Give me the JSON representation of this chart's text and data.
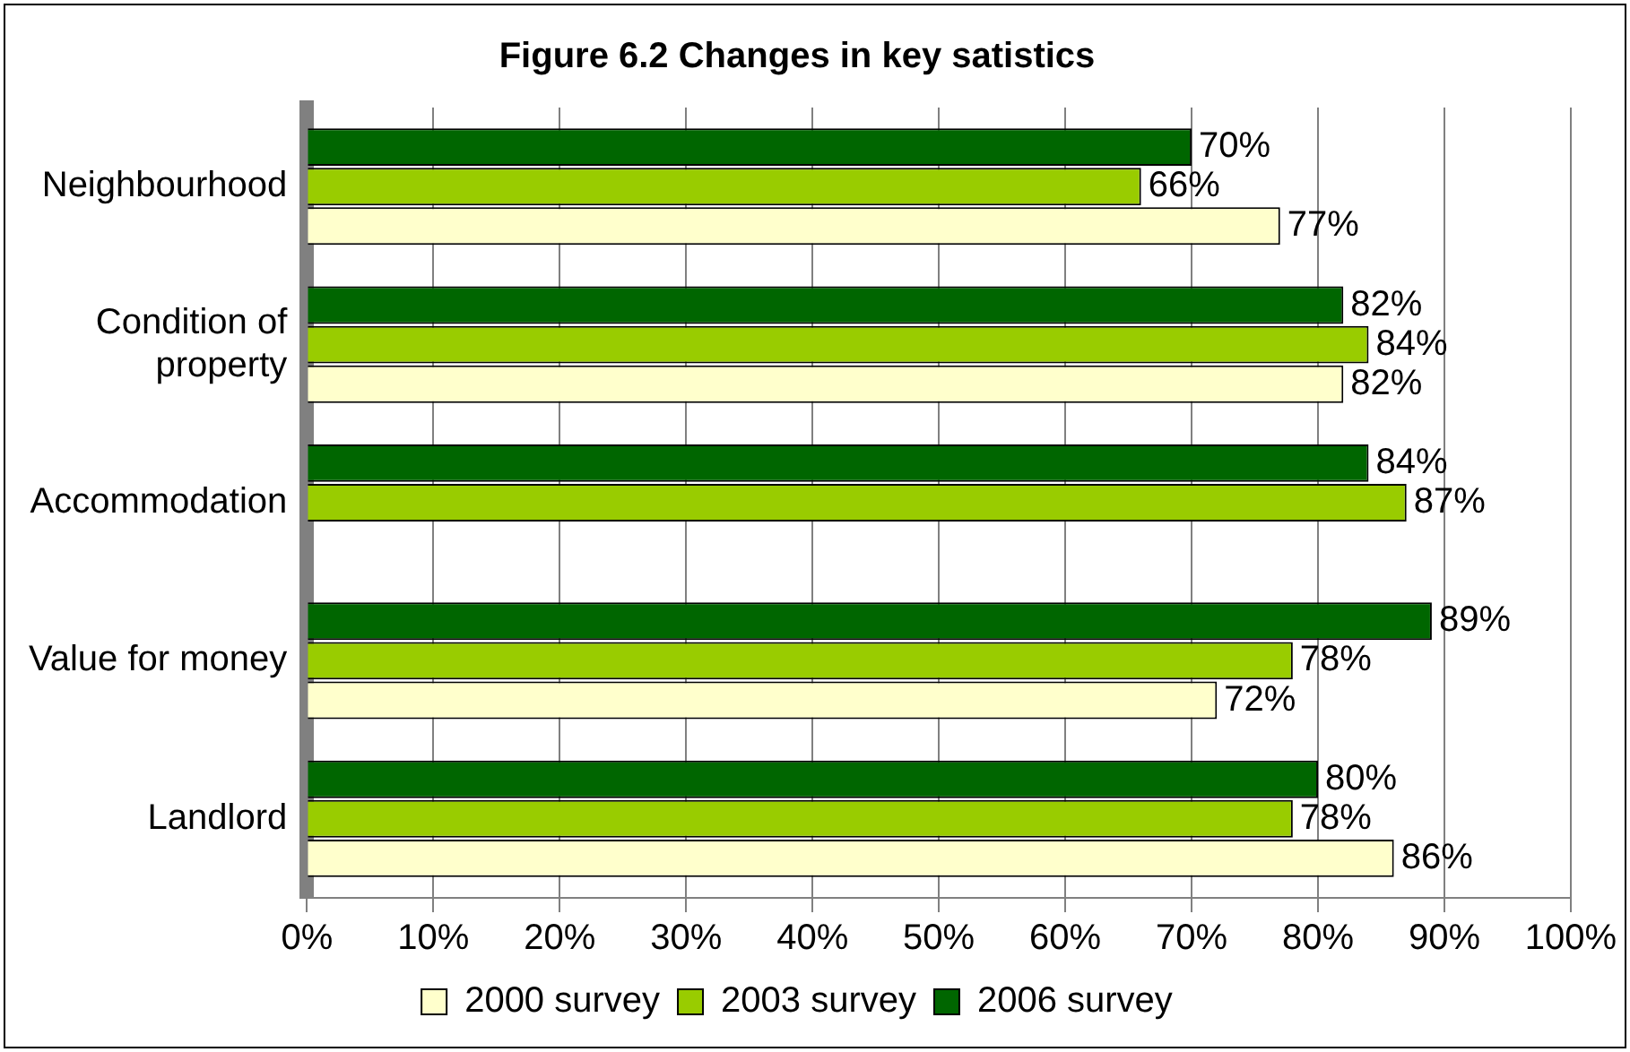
{
  "chart_data": {
    "type": "bar",
    "orientation": "horizontal",
    "title": "Figure 6.2 Changes in key satistics",
    "categories": [
      "Neighbourhood",
      "Condition of property",
      "Accommodation",
      "Value for money",
      "Landlord"
    ],
    "series": [
      {
        "name": "2000 survey",
        "color": "#ffffcc",
        "values": [
          77,
          82,
          null,
          72,
          86
        ],
        "value_labels": [
          "77%",
          "82%",
          null,
          "72%",
          "86%"
        ]
      },
      {
        "name": "2003 survey",
        "color": "#99cc00",
        "values": [
          66,
          84,
          87,
          78,
          78
        ],
        "value_labels": [
          "66%",
          "84%",
          "87%",
          "78%",
          "78%"
        ]
      },
      {
        "name": "2006 survey",
        "color": "#006600",
        "values": [
          70,
          82,
          84,
          89,
          80
        ],
        "value_labels": [
          "70%",
          "82%",
          "84%",
          "89%",
          "80%"
        ]
      }
    ],
    "xlim": [
      0,
      100
    ],
    "xticks": [
      {
        "value": 0,
        "label": "0%"
      },
      {
        "value": 10,
        "label": "10%"
      },
      {
        "value": 20,
        "label": "20%"
      },
      {
        "value": 30,
        "label": "30%"
      },
      {
        "value": 40,
        "label": "40%"
      },
      {
        "value": 50,
        "label": "50%"
      },
      {
        "value": 60,
        "label": "60%"
      },
      {
        "value": 70,
        "label": "70%"
      },
      {
        "value": 80,
        "label": "80%"
      },
      {
        "value": 90,
        "label": "90%"
      },
      {
        "value": 100,
        "label": "100%"
      }
    ],
    "grid": "x",
    "legend": "bottom"
  }
}
